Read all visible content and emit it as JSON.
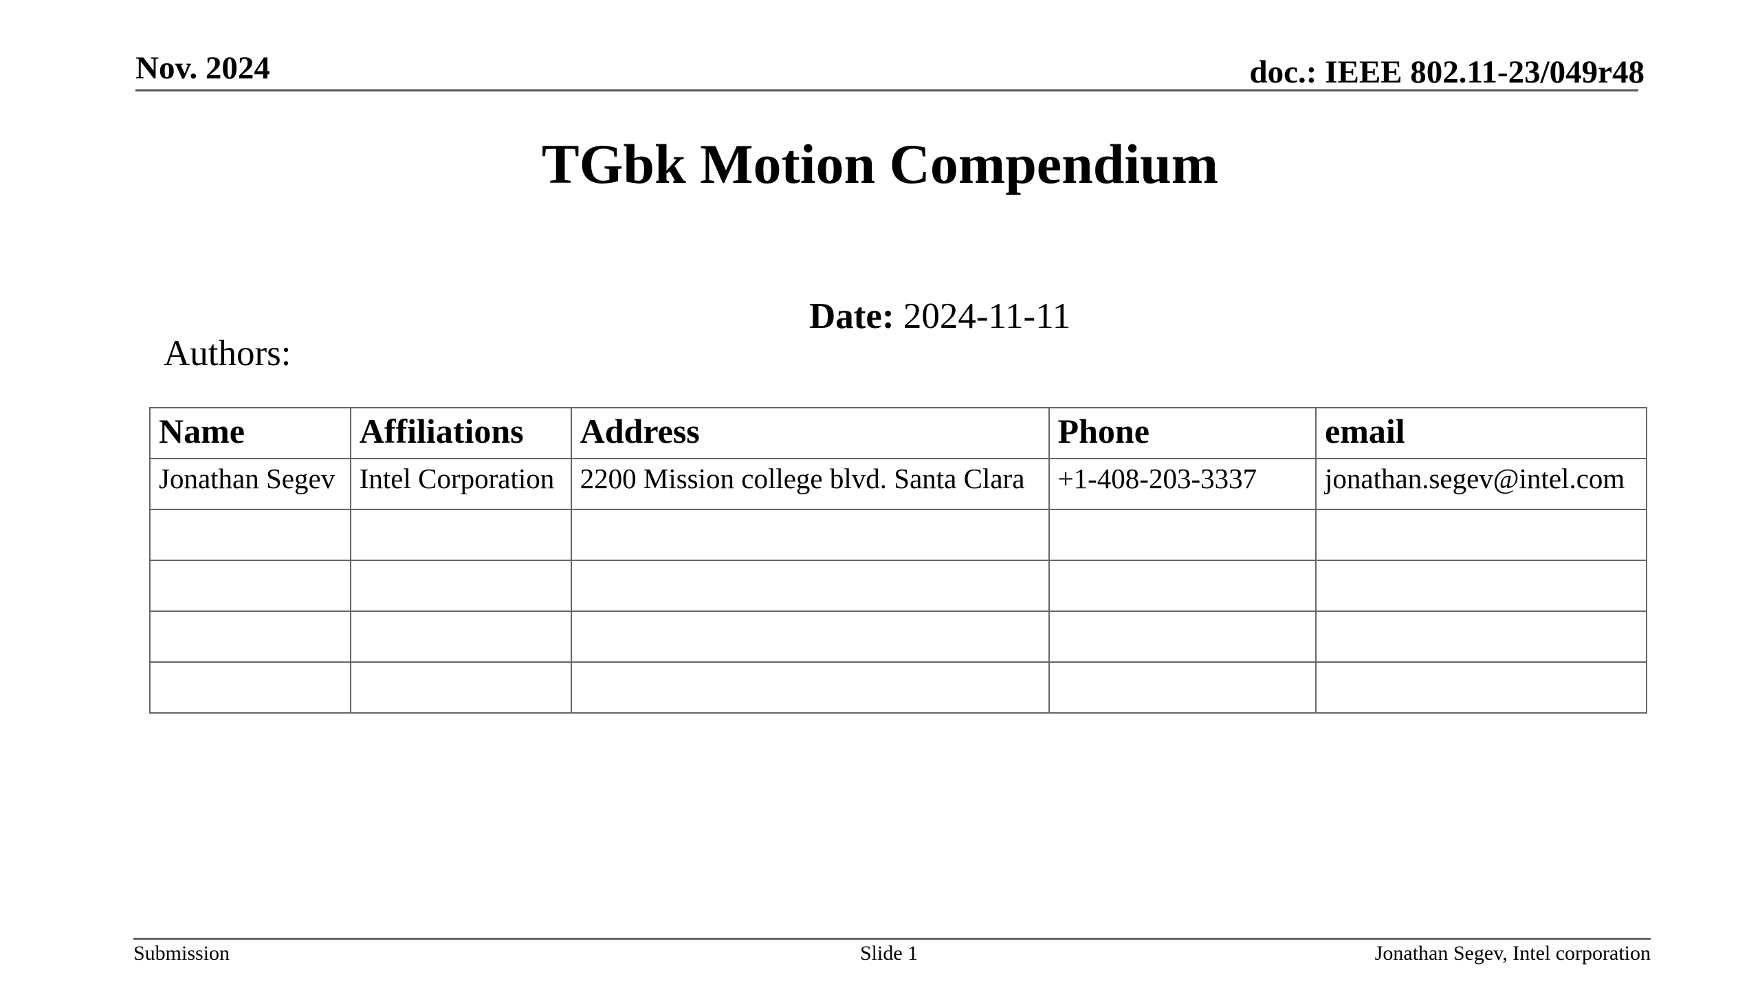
{
  "header": {
    "date": "Nov. 2024",
    "doc_id": "doc.: IEEE 802.11-23/049r48"
  },
  "title": "TGbk Motion Compendium",
  "date_label": "Date:",
  "date_value": "2024-11-11",
  "authors_label": "Authors:",
  "authors_table": {
    "columns": [
      "Name",
      "Affiliations",
      "Address",
      "Phone",
      "email"
    ],
    "rows": [
      [
        "Jonathan Segev",
        "Intel Corporation",
        "2200 Mission college blvd. Santa Clara",
        "+1-408-203-3337",
        "jonathan.segev@intel.com"
      ],
      [
        "",
        "",
        "",
        "",
        ""
      ],
      [
        "",
        "",
        "",
        "",
        ""
      ],
      [
        "",
        "",
        "",
        "",
        ""
      ],
      [
        "",
        "",
        "",
        "",
        ""
      ]
    ]
  },
  "footer": {
    "left": "Submission",
    "center": "Slide 1",
    "right": "Jonathan Segev, Intel corporation"
  }
}
